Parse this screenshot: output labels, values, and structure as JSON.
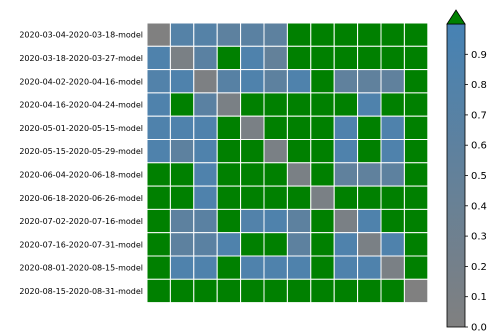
{
  "chart_data": {
    "type": "heatmap",
    "title": "",
    "xlabel": "",
    "ylabel": "",
    "x_tick_labels": [],
    "row_labels": [
      "2020-03-04-2020-03-18-model",
      "2020-03-18-2020-03-27-model",
      "2020-04-02-2020-04-16-model",
      "2020-04-16-2020-04-24-model",
      "2020-05-01-2020-05-15-model",
      "2020-05-15-2020-05-29-model",
      "2020-06-04-2020-06-18-model",
      "2020-06-18-2020-06-26-model",
      "2020-07-02-2020-07-16-model",
      "2020-07-16-2020-07-31-model",
      "2020-08-01-2020-08-15-model",
      "2020-08-15-2020-08-31-model"
    ],
    "values": [
      [
        0.0,
        0.75,
        0.75,
        0.6,
        0.65,
        0.6,
        1.0,
        1.0,
        1.0,
        1.0,
        1.0,
        1.0
      ],
      [
        0.85,
        0.1,
        0.65,
        1.0,
        0.85,
        0.5,
        1.0,
        1.0,
        1.0,
        1.0,
        1.0,
        1.0
      ],
      [
        0.8,
        0.85,
        0.05,
        0.7,
        0.85,
        0.6,
        0.85,
        1.0,
        0.55,
        0.55,
        0.55,
        1.0
      ],
      [
        0.85,
        1.0,
        0.65,
        0.1,
        1.0,
        1.0,
        1.0,
        1.0,
        1.0,
        0.85,
        1.0,
        1.0
      ],
      [
        0.85,
        0.85,
        0.85,
        1.0,
        0.1,
        1.0,
        1.0,
        1.0,
        0.85,
        1.0,
        0.85,
        1.0
      ],
      [
        0.85,
        0.6,
        0.85,
        1.0,
        1.0,
        0.1,
        1.0,
        1.0,
        0.85,
        1.0,
        0.85,
        1.0
      ],
      [
        1.0,
        1.0,
        0.85,
        1.0,
        1.0,
        1.0,
        0.1,
        1.0,
        0.55,
        0.55,
        0.6,
        1.0
      ],
      [
        1.0,
        1.0,
        0.85,
        1.0,
        1.0,
        1.0,
        1.0,
        0.1,
        1.0,
        1.0,
        1.0,
        1.0
      ],
      [
        1.0,
        0.6,
        0.65,
        1.0,
        0.8,
        0.85,
        0.6,
        1.0,
        0.1,
        0.85,
        1.0,
        1.0
      ],
      [
        1.0,
        0.6,
        0.65,
        0.85,
        1.0,
        1.0,
        0.6,
        1.0,
        0.85,
        0.1,
        0.85,
        1.0
      ],
      [
        1.0,
        0.85,
        0.85,
        1.0,
        0.85,
        0.85,
        0.85,
        1.0,
        0.85,
        0.85,
        0.1,
        1.0
      ],
      [
        1.0,
        1.0,
        1.0,
        1.0,
        1.0,
        1.0,
        1.0,
        1.0,
        1.0,
        1.0,
        1.0,
        0.0
      ]
    ],
    "colormap": {
      "low_color": "#808080",
      "high_color": "#4682b4",
      "over_color": "#008000",
      "range": [
        0.0,
        1.0
      ],
      "extend": "max"
    },
    "colorbar": {
      "ticks": [
        0.0,
        0.1,
        0.2,
        0.3,
        0.4,
        0.5,
        0.6,
        0.7,
        0.8,
        0.9
      ],
      "tick_labels": [
        "0.0",
        "0.1",
        "0.2",
        "0.3",
        "0.4",
        "0.5",
        "0.6",
        "0.7",
        "0.8",
        "0.9"
      ]
    },
    "grid": true,
    "grid_color": "#ffffff"
  }
}
